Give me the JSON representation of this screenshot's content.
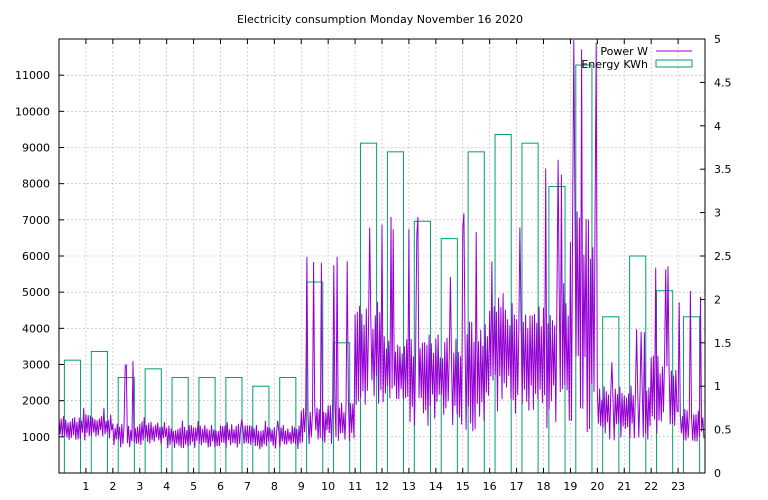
{
  "chart_data": {
    "type": "bar+line",
    "title": "Electricity consumption Monday November 16 2020",
    "xlabel": "",
    "ylabel_left": "",
    "ylabel_right": "",
    "x_range": [
      0,
      24
    ],
    "y_left_range": [
      0,
      12000
    ],
    "y_right_range": [
      0,
      5
    ],
    "x_ticks": [
      1,
      2,
      3,
      4,
      5,
      6,
      7,
      8,
      9,
      10,
      11,
      12,
      13,
      14,
      15,
      16,
      17,
      18,
      19,
      20,
      21,
      22,
      23
    ],
    "y_left_ticks": [
      1000,
      2000,
      3000,
      4000,
      5000,
      6000,
      7000,
      8000,
      9000,
      10000,
      11000
    ],
    "y_right_ticks": [
      0,
      0.5,
      1,
      1.5,
      2,
      2.5,
      3,
      3.5,
      4,
      4.5,
      5
    ],
    "y_right_tick_labels": [
      "0",
      "0.5",
      "1",
      "1.5",
      "2",
      "2.5",
      "3",
      "3.5",
      "4",
      "4.5",
      "5"
    ],
    "grid": true,
    "legend_position": "top-right",
    "colors": {
      "power": "#9400d3",
      "energy": "#009e73"
    },
    "series": [
      {
        "name": "Energy KWh",
        "kind": "bar",
        "axis": "right",
        "hours": [
          0,
          1,
          2,
          3,
          4,
          5,
          6,
          7,
          8,
          9,
          10,
          11,
          12,
          13,
          14,
          15,
          16,
          17,
          18,
          19,
          20,
          21,
          22,
          23
        ],
        "values": [
          1.3,
          1.4,
          1.1,
          1.2,
          1.1,
          1.1,
          1.1,
          1.0,
          1.1,
          2.2,
          1.5,
          3.8,
          3.7,
          2.9,
          2.7,
          3.7,
          3.9,
          3.8,
          3.3,
          4.7,
          1.8,
          2.5,
          2.1,
          1.8
        ]
      },
      {
        "name": "Power W",
        "kind": "line",
        "axis": "left",
        "hours": [
          0,
          1,
          2,
          3,
          4,
          5,
          6,
          7,
          8,
          9,
          10,
          11,
          12,
          13,
          14,
          15,
          16,
          17,
          18,
          19,
          20,
          21,
          22,
          23
        ],
        "avg": [
          1300,
          1350,
          1100,
          1150,
          1050,
          1050,
          1100,
          1050,
          1050,
          1450,
          1500,
          3600,
          3000,
          2800,
          2800,
          3000,
          3600,
          3400,
          3600,
          5000,
          1800,
          1800,
          2400,
          1400
        ],
        "low": [
          900,
          950,
          700,
          750,
          650,
          650,
          650,
          650,
          650,
          800,
          700,
          1800,
          1800,
          1300,
          1300,
          1100,
          1500,
          1500,
          1200,
          1100,
          900,
          900,
          1000,
          850
        ],
        "high": [
          1800,
          1800,
          3200,
          1600,
          1500,
          1500,
          1500,
          1500,
          1500,
          6000,
          6000,
          7200,
          7200,
          7200,
          5800,
          7200,
          6000,
          7200,
          9000,
          12000,
          3200,
          4000,
          6000,
          5100
        ]
      }
    ]
  }
}
